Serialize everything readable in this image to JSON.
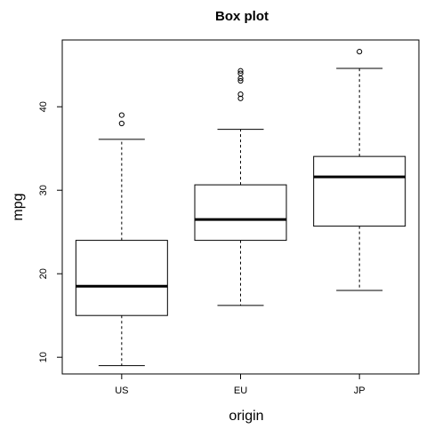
{
  "chart_data": {
    "type": "box",
    "title": "Box plot",
    "xlabel": "origin",
    "ylabel": "mpg",
    "categories": [
      "US",
      "EU",
      "JP"
    ],
    "ylim": [
      8,
      48
    ],
    "yticks": [
      10,
      20,
      30,
      40
    ],
    "grid": false,
    "boxes": [
      {
        "category": "US",
        "whisker_low": 9.0,
        "q1": 15.0,
        "median": 18.5,
        "q3": 24.0,
        "whisker_high": 36.1,
        "outliers": [
          38.0,
          39.0
        ]
      },
      {
        "category": "EU",
        "whisker_low": 16.2,
        "q1": 24.0,
        "median": 26.5,
        "q3": 30.65,
        "whisker_high": 37.3,
        "outliers": [
          41.0,
          41.5,
          43.1,
          43.4,
          44.0,
          44.3
        ]
      },
      {
        "category": "JP",
        "whisker_low": 18.0,
        "q1": 25.7,
        "median": 31.6,
        "q3": 34.05,
        "whisker_high": 44.6,
        "outliers": [
          46.6
        ]
      }
    ]
  }
}
